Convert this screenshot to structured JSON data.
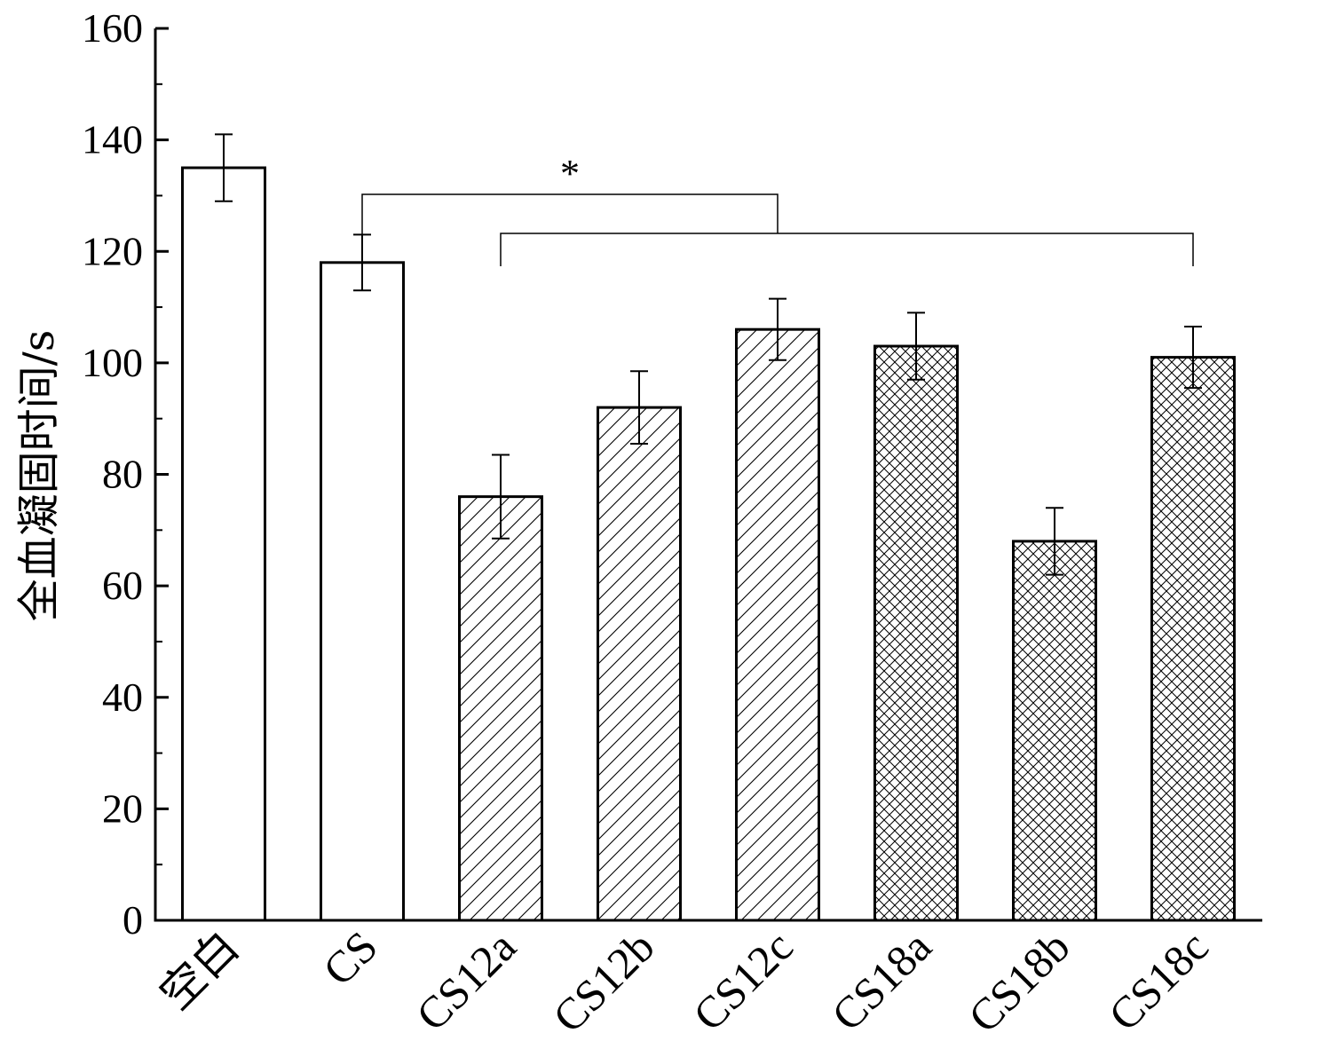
{
  "chart_data": {
    "type": "bar",
    "title": "",
    "xlabel": "",
    "ylabel": "全血凝固时间/s",
    "ylim": [
      0,
      160
    ],
    "yticks": [
      0,
      20,
      40,
      60,
      80,
      100,
      120,
      140,
      160
    ],
    "categories": [
      "空白",
      "CS",
      "CS12a",
      "CS12b",
      "CS12c",
      "CS18a",
      "CS18b",
      "CS18c"
    ],
    "values": [
      135,
      118,
      76,
      92,
      106,
      103,
      68,
      101
    ],
    "errors": [
      6,
      5,
      7.5,
      6.5,
      5.5,
      6,
      6,
      5.5
    ],
    "patterns": [
      "none",
      "none",
      "diagonal",
      "diagonal",
      "diagonal",
      "crosshatch",
      "crosshatch",
      "crosshatch"
    ],
    "grid": false,
    "legend": "none",
    "annotations": {
      "significance_label": "*",
      "brackets": [
        {
          "from": "CS",
          "to": "CS12c"
        },
        {
          "from": "CS12a",
          "to": "CS18c"
        }
      ]
    },
    "colors": {
      "bar_fill": "#ffffff",
      "stroke": "#000000"
    }
  }
}
